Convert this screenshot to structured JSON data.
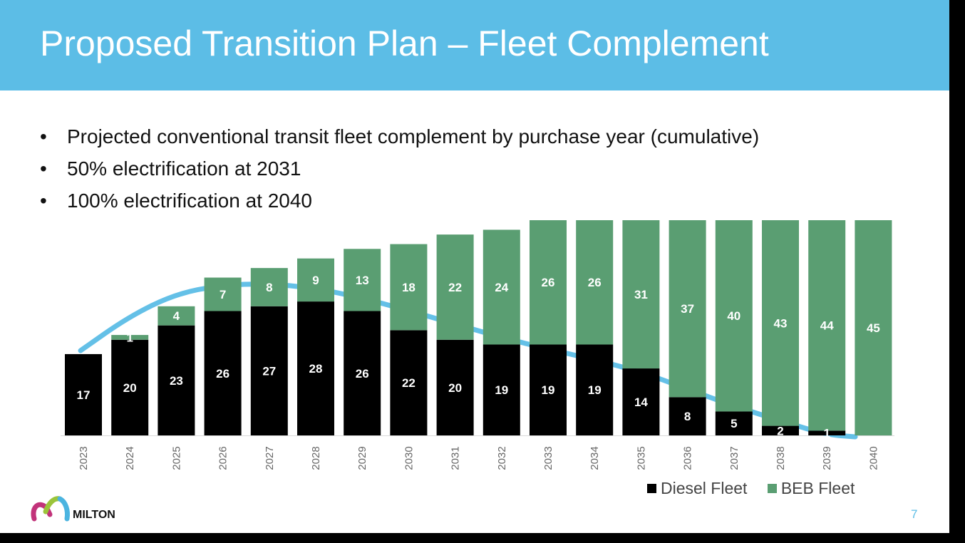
{
  "slide": {
    "title": "Proposed Transition Plan – Fleet Complement",
    "bullets": [
      "Projected conventional transit fleet complement by purchase year (cumulative)",
      "50% electrification at 2031",
      "100% electrification at 2040"
    ],
    "logo_text": "MILTON",
    "page_number": "7",
    "header_color": "#5cbde6"
  },
  "chart_data": {
    "type": "bar",
    "stacked": true,
    "categories": [
      "2023",
      "2024",
      "2025",
      "2026",
      "2027",
      "2028",
      "2029",
      "2030",
      "2031",
      "2032",
      "2033",
      "2034",
      "2035",
      "2036",
      "2037",
      "2038",
      "2039",
      "2040"
    ],
    "series": [
      {
        "name": "Diesel Fleet",
        "color": "#000000",
        "values": [
          17,
          20,
          23,
          26,
          27,
          28,
          26,
          22,
          20,
          19,
          19,
          19,
          14,
          8,
          5,
          2,
          1,
          0
        ]
      },
      {
        "name": "BEB Fleet",
        "color": "#5a9e72",
        "values": [
          0,
          1,
          4,
          7,
          8,
          9,
          13,
          18,
          22,
          24,
          26,
          26,
          31,
          37,
          40,
          43,
          44,
          45
        ]
      }
    ],
    "ylim": [
      0,
      45
    ],
    "grid": false,
    "legend": "bottom-right",
    "trend_line_color": "#5cbde6"
  }
}
